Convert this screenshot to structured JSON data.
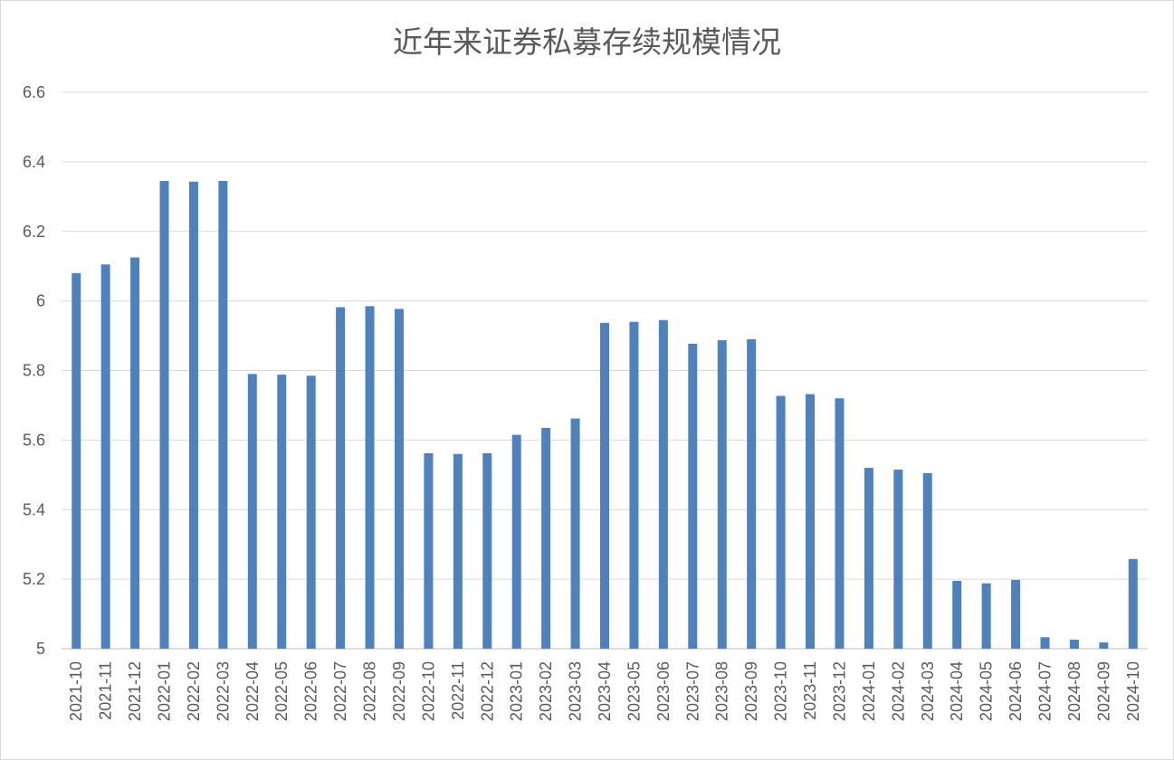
{
  "chart_data": {
    "type": "bar",
    "title": "近年来证券私募存续规模情况",
    "xlabel": "",
    "ylabel": "",
    "ylim": [
      5,
      6.6
    ],
    "yticks": [
      "5",
      "5.2",
      "5.4",
      "5.6",
      "5.8",
      "6",
      "6.2",
      "6.4",
      "6.6"
    ],
    "grid": true,
    "bar_color": "#4f81bd",
    "categories": [
      "2021-10",
      "2021-11",
      "2021-12",
      "2022-01",
      "2022-02",
      "2022-03",
      "2022-04",
      "2022-05",
      "2022-06",
      "2022-07",
      "2022-08",
      "2022-09",
      "2022-10",
      "2022-11",
      "2022-12",
      "2023-01",
      "2023-02",
      "2023-03",
      "2023-04",
      "2023-05",
      "2023-06",
      "2023-07",
      "2023-08",
      "2023-09",
      "2023-10",
      "2023-11",
      "2023-12",
      "2024-01",
      "2024-02",
      "2024-03",
      "2024-04",
      "2024-05",
      "2024-06",
      "2024-07",
      "2024-08",
      "2024-09",
      "2024-10"
    ],
    "values": [
      6.08,
      6.105,
      6.125,
      6.345,
      6.343,
      6.345,
      5.79,
      5.788,
      5.785,
      5.982,
      5.985,
      5.977,
      5.562,
      5.56,
      5.562,
      5.615,
      5.635,
      5.662,
      5.937,
      5.94,
      5.945,
      5.877,
      5.887,
      5.89,
      5.727,
      5.732,
      5.72,
      5.52,
      5.515,
      5.505,
      5.195,
      5.188,
      5.198,
      5.033,
      5.026,
      5.018,
      5.258
    ]
  }
}
